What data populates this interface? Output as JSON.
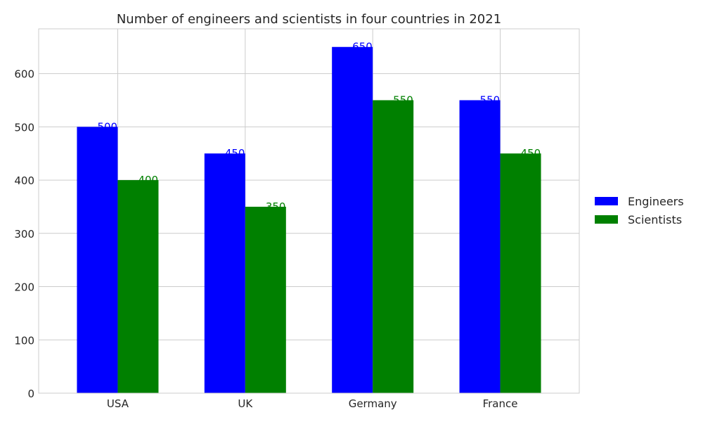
{
  "chart_data": {
    "type": "bar",
    "title": "Number of engineers and scientists in four countries in 2021",
    "xlabel": "",
    "ylabel": "",
    "categories": [
      "USA",
      "UK",
      "Germany",
      "France"
    ],
    "series": [
      {
        "name": "Engineers",
        "values": [
          500,
          450,
          650,
          550
        ],
        "color": "#0000ff"
      },
      {
        "name": "Scientists",
        "values": [
          400,
          350,
          550,
          450
        ],
        "color": "#008000"
      }
    ],
    "ylim": [
      0,
      684
    ],
    "yticks": [
      0,
      100,
      200,
      300,
      400,
      500,
      600
    ],
    "grid": true,
    "legend": "center-right",
    "data_labels": true
  }
}
